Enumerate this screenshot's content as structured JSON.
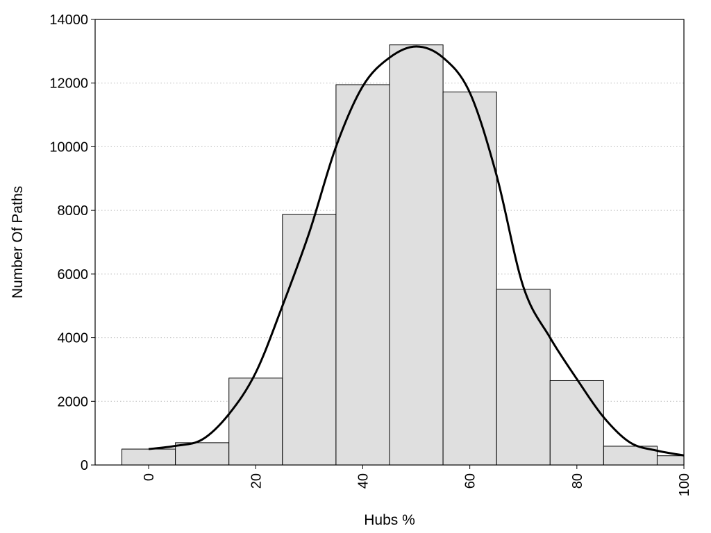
{
  "chart_data": {
    "type": "bar",
    "title": "",
    "xlabel": "Hubs %",
    "ylabel": "Number Of Paths",
    "xlim": [
      -10,
      100
    ],
    "ylim": [
      0,
      14000
    ],
    "x_ticks": [
      "0",
      "20",
      "40",
      "60",
      "80",
      "100"
    ],
    "y_ticks": [
      "0",
      "2000",
      "4000",
      "6000",
      "8000",
      "10000",
      "12000",
      "14000"
    ],
    "bin_width": 10,
    "bins": [
      {
        "center": 0,
        "value": 500
      },
      {
        "center": 10,
        "value": 700
      },
      {
        "center": 20,
        "value": 2730
      },
      {
        "center": 30,
        "value": 7870
      },
      {
        "center": 40,
        "value": 11950
      },
      {
        "center": 50,
        "value": 13200
      },
      {
        "center": 60,
        "value": 11720
      },
      {
        "center": 70,
        "value": 5520
      },
      {
        "center": 80,
        "value": 2650
      },
      {
        "center": 90,
        "value": 590
      },
      {
        "center": 100,
        "value": 290
      }
    ],
    "density_curve": {
      "x": [
        0,
        5,
        10,
        15,
        20,
        25,
        30,
        35,
        40,
        45,
        50,
        55,
        60,
        65,
        70,
        75,
        80,
        85,
        90,
        95,
        100
      ],
      "y": [
        500,
        600,
        800,
        1600,
        2900,
        5000,
        7300,
        10000,
        11900,
        12800,
        13150,
        12800,
        11700,
        9100,
        5600,
        4000,
        2700,
        1500,
        700,
        450,
        300
      ]
    },
    "grid": {
      "y_major": true,
      "x_major": false,
      "style": "dotted"
    },
    "colors": {
      "bar_fill": "#dfdfdf",
      "bar_edge": "#000000",
      "curve": "#000000",
      "grid": "#bbbbbb"
    }
  }
}
